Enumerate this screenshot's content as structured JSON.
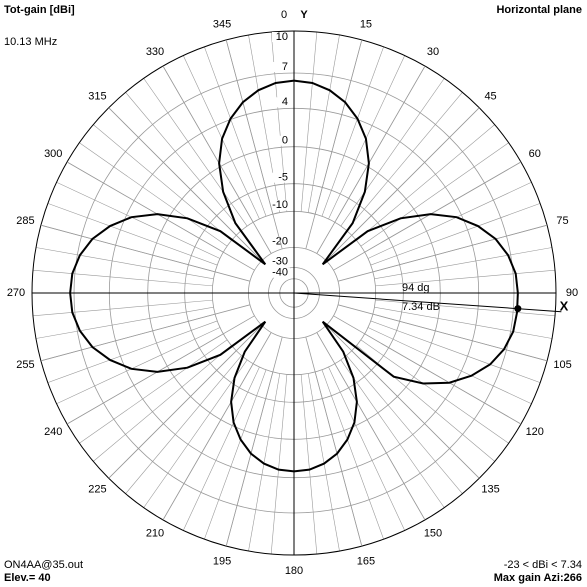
{
  "chart_data": {
    "type": "polar",
    "title": "Tot-gain [dBi]",
    "subtitle": "10.13 MHz",
    "plane_label": "Horizontal plane",
    "file_label": "ON4AA@35.out",
    "elevation_label": "Elev.= 40",
    "range_label": "-23 < dBi < 7.34",
    "max_gain_label": "Max gain Azi:266",
    "x_axis_label": "X",
    "y_axis_label": "Y",
    "scale": "arrl-log",
    "color": "#000000",
    "rticks": [
      10,
      7,
      4,
      0,
      -5,
      -10,
      -20,
      -30,
      -40
    ],
    "angle_ticks": [
      0,
      15,
      30,
      45,
      60,
      75,
      90,
      105,
      120,
      135,
      150,
      165,
      180,
      195,
      210,
      225,
      240,
      255,
      270,
      285,
      300,
      315,
      330,
      345
    ],
    "x": [
      0,
      5,
      10,
      15,
      20,
      25,
      30,
      35,
      40,
      45,
      50,
      55,
      60,
      65,
      70,
      75,
      80,
      85,
      90,
      95,
      100,
      105,
      110,
      115,
      120,
      125,
      130,
      135,
      140,
      145,
      150,
      155,
      160,
      165,
      170,
      175,
      180,
      185,
      190,
      195,
      200,
      205,
      210,
      215,
      220,
      225,
      230,
      235,
      240,
      245,
      250,
      255,
      260,
      265,
      270,
      275,
      280,
      285,
      290,
      295,
      300,
      305,
      310,
      315,
      320,
      325,
      330,
      335,
      340,
      345,
      350,
      355
    ],
    "values": [
      6.4,
      6.27,
      5.86,
      5.15,
      4.08,
      2.6,
      0.4,
      -2.9,
      -8.1,
      -22,
      -7.2,
      -2.0,
      1.3,
      3.5,
      5.0,
      6.1,
      6.8,
      7.2,
      7.3,
      7.3,
      7.2,
      6.8,
      6.1,
      5.0,
      3.5,
      1.3,
      -2.0,
      -22,
      -11.1,
      -5.9,
      -2.6,
      -0.4,
      1.1,
      2.2,
      2.9,
      3.3,
      3.4,
      3.3,
      2.9,
      2.2,
      1.1,
      -0.4,
      -2.6,
      -5.9,
      -11.1,
      -22,
      -7.2,
      -2.0,
      1.3,
      3.5,
      5.0,
      6.1,
      6.8,
      7.2,
      7.3,
      7.2,
      6.8,
      6.1,
      5.0,
      3.5,
      1.3,
      -2.0,
      -7.2,
      -22,
      -8.1,
      -2.9,
      0.4,
      2.6,
      4.08,
      5.15,
      5.86,
      6.27
    ],
    "max_marker": {
      "angle": {
        "value": 94,
        "label": "94 dg"
      },
      "gain": {
        "value": 7.34,
        "label": "7.34 dB"
      }
    }
  }
}
